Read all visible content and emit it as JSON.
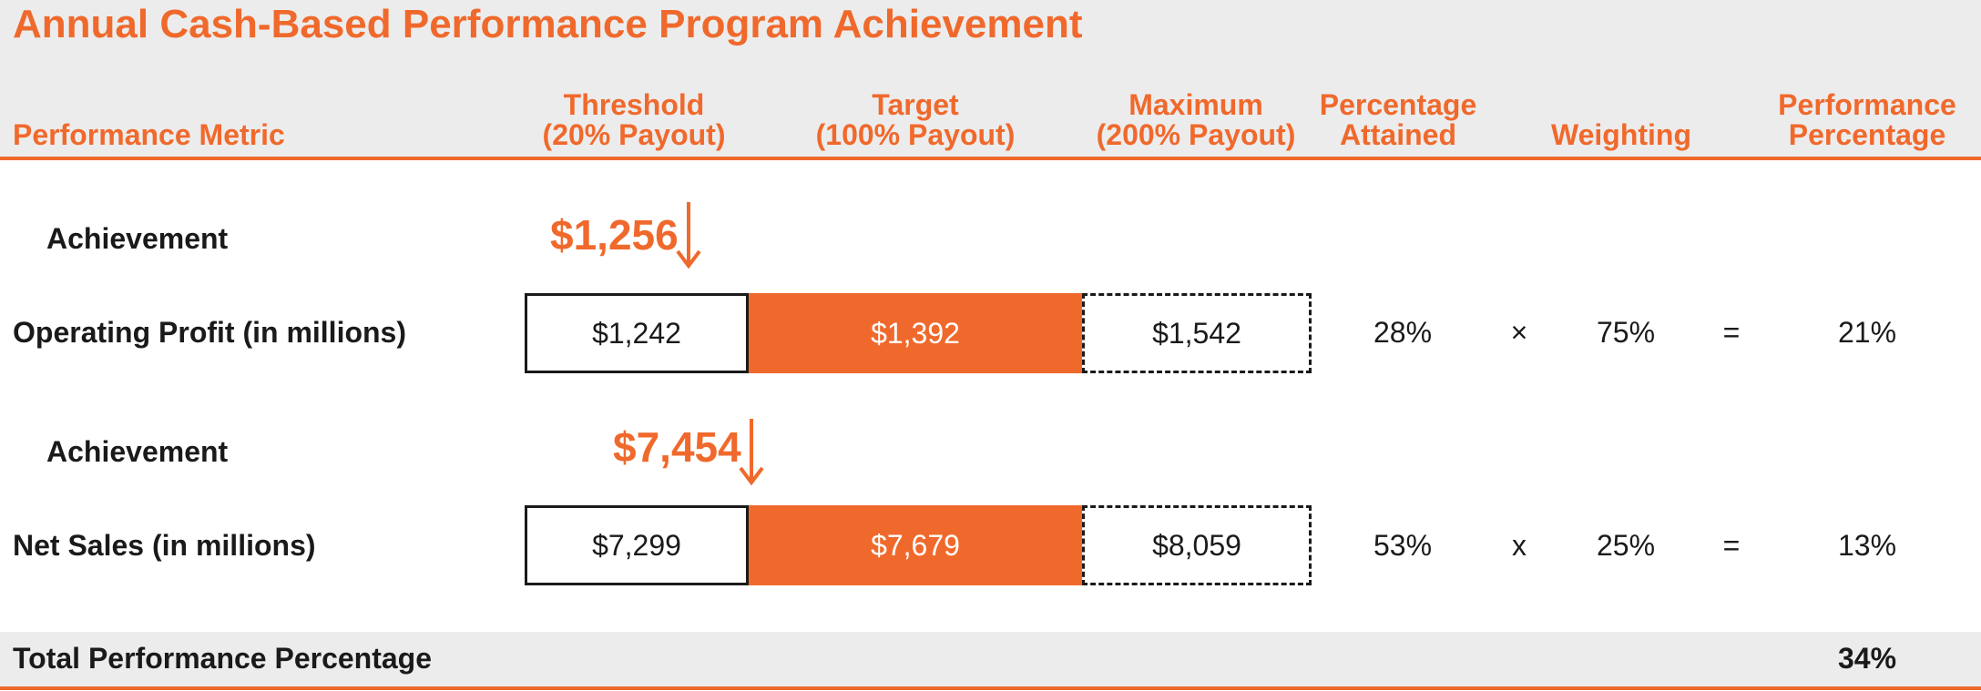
{
  "title": "Annual Cash-Based Performance Program Achievement",
  "columns": {
    "metric": "Performance Metric",
    "threshold": [
      "Threshold",
      "(20% Payout)"
    ],
    "target": [
      "Target",
      "(100% Payout)"
    ],
    "maximum": [
      "Maximum",
      "(200% Payout)"
    ],
    "attained": [
      "Percentage",
      "Attained"
    ],
    "weighting": "Weighting",
    "performance": [
      "Performance",
      "Percentage"
    ]
  },
  "rows": [
    {
      "achievement_label": "Achievement",
      "achievement_value": "$1,256",
      "metric": "Operating Profit (in millions)",
      "threshold": "$1,242",
      "target": "$1,392",
      "maximum": "$1,542",
      "attained": "28%",
      "operator": "×",
      "weighting": "75%",
      "equals": "=",
      "performance": "21%"
    },
    {
      "achievement_label": "Achievement",
      "achievement_value": "$7,454",
      "metric": "Net Sales (in millions)",
      "threshold": "$7,299",
      "target": "$7,679",
      "maximum": "$8,059",
      "attained": "53%",
      "operator": "x",
      "weighting": "25%",
      "equals": "=",
      "performance": "13%"
    }
  ],
  "total": {
    "label": "Total Performance Percentage",
    "value": "34%"
  },
  "colors": {
    "accent": "#f0692c",
    "band": "#ececec",
    "text": "#1a1a1a"
  }
}
